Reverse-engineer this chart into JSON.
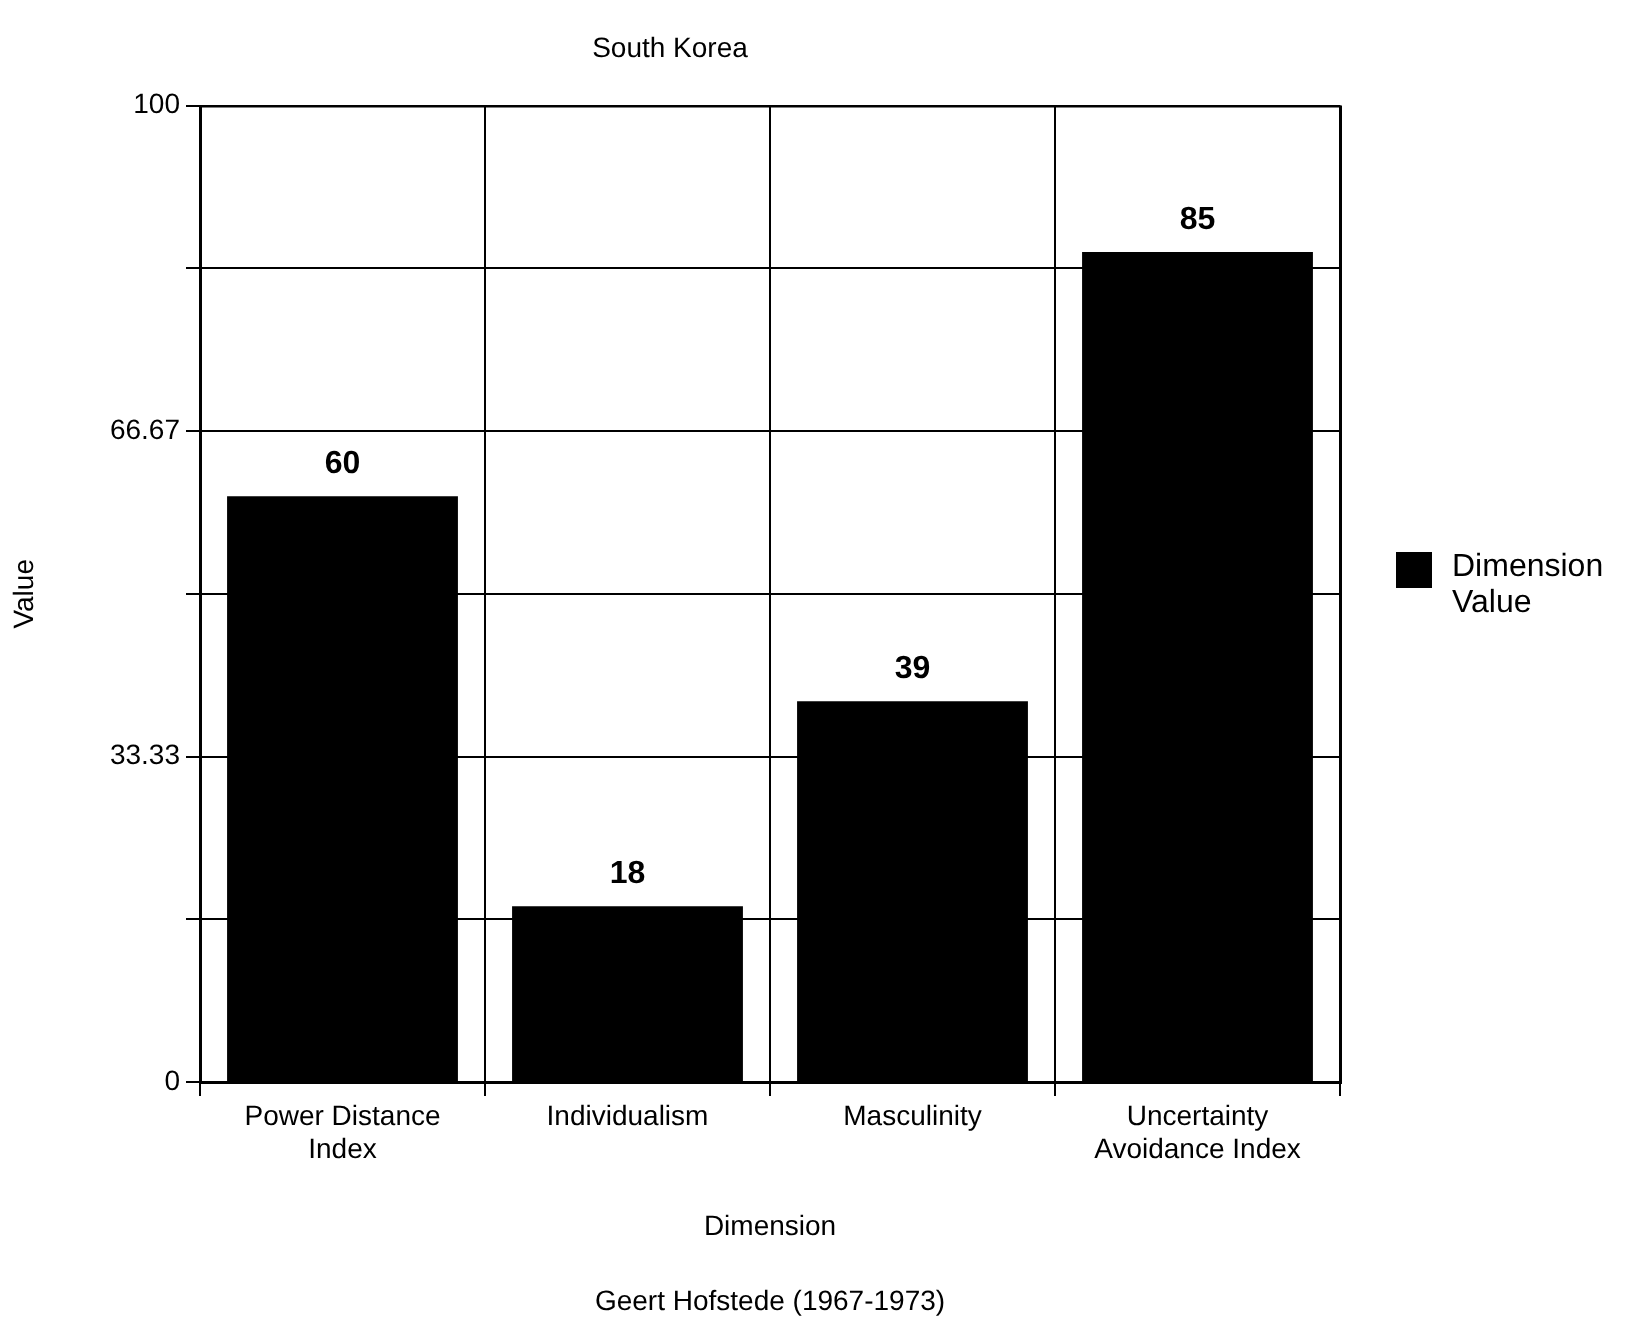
{
  "chart_data": {
    "type": "bar",
    "title": "South Korea",
    "xlabel": "Dimension",
    "ylabel": "Value",
    "categories": [
      "Power Distance Index",
      "Individualism",
      "Masculinity",
      "Uncertainty Avoidance Index"
    ],
    "series": [
      {
        "name": "Dimension Value",
        "color": "#000000",
        "values": [
          60,
          18,
          39,
          85
        ]
      }
    ],
    "ylim": [
      0,
      100
    ],
    "yticks": [
      0,
      {
        "value": 16.67,
        "label": null
      },
      33.33,
      {
        "value": 50,
        "label": null
      },
      66.67,
      {
        "value": 83.33,
        "label": null
      },
      100
    ],
    "grid": true,
    "legend": "right",
    "data_labels": true,
    "annotations": [
      "Geert Hofstede (1967-1973)"
    ]
  }
}
